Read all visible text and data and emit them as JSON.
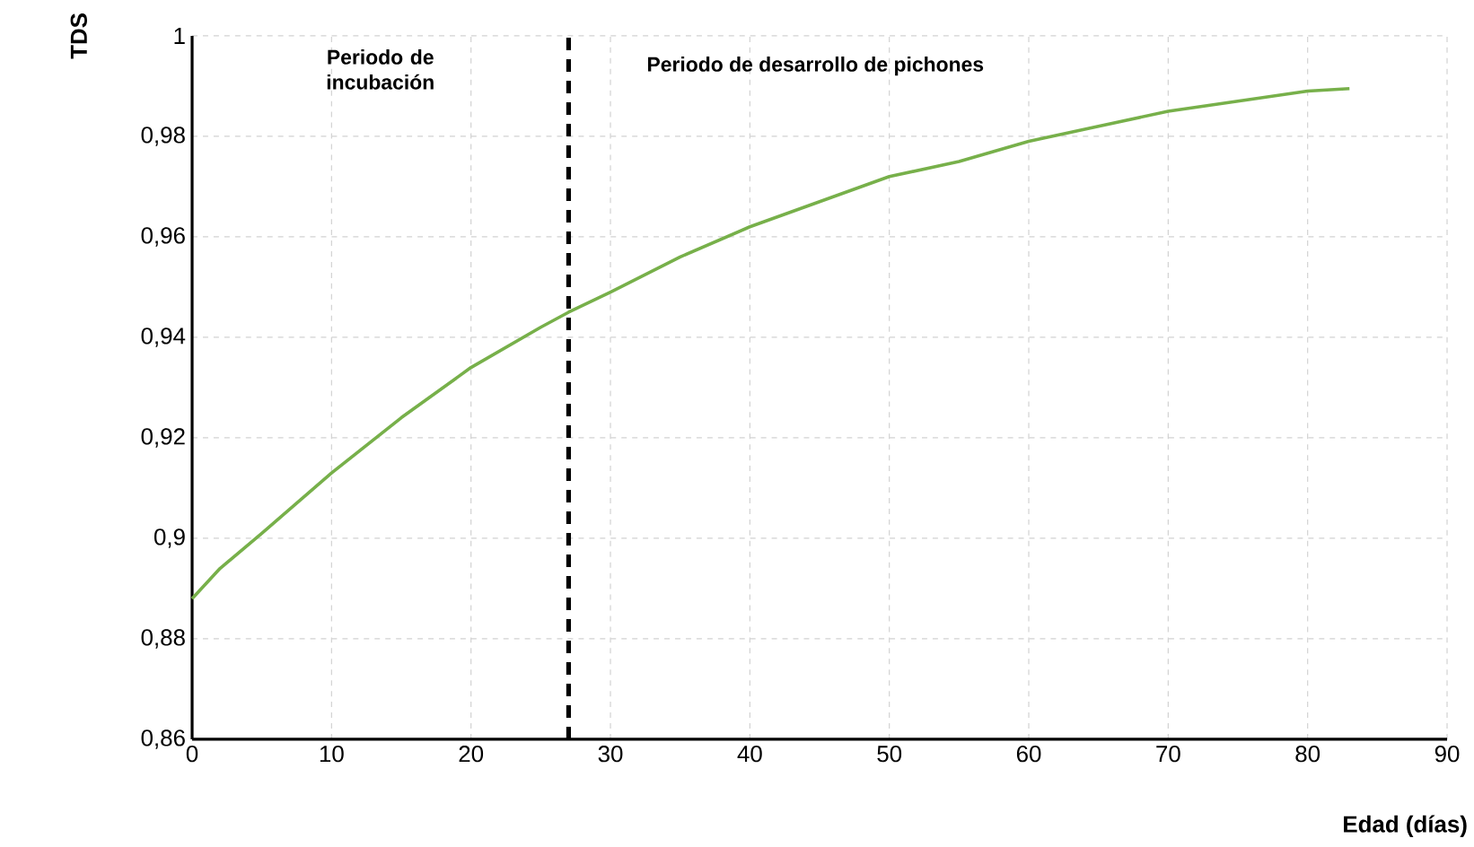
{
  "chart_data": {
    "type": "line",
    "xlabel": "Edad (días)",
    "ylabel": "TDS",
    "annotations": [
      "Periodo de incubación",
      "Periodo de desarrollo de pichones"
    ],
    "x": [
      0,
      2,
      5,
      10,
      15,
      20,
      25,
      27,
      30,
      35,
      40,
      45,
      50,
      55,
      60,
      65,
      70,
      75,
      80,
      83
    ],
    "series": [
      {
        "color": "#77b04a",
        "values": [
          0.888,
          0.894,
          0.901,
          0.913,
          0.924,
          0.934,
          0.942,
          0.945,
          0.949,
          0.956,
          0.962,
          0.967,
          0.972,
          0.975,
          0.979,
          0.982,
          0.985,
          0.987,
          0.989,
          0.9895
        ]
      }
    ],
    "xlim": [
      0,
      90
    ],
    "xticks": [
      0,
      10,
      20,
      30,
      40,
      50,
      60,
      70,
      80,
      90
    ],
    "ylim": [
      0.86,
      1
    ],
    "yticks": [
      {
        "value": 0.86,
        "label": "0,86"
      },
      {
        "value": 0.88,
        "label": "0,88"
      },
      {
        "value": 0.9,
        "label": "0,9"
      },
      {
        "value": 0.92,
        "label": "0,92"
      },
      {
        "value": 0.94,
        "label": "0,94"
      },
      {
        "value": 0.96,
        "label": "0,96"
      },
      {
        "value": 0.98,
        "label": "0,98"
      },
      {
        "value": 1,
        "label": "1"
      }
    ],
    "ref_lines": [
      {
        "axis": "x",
        "value": 27,
        "color": "#000000",
        "line_style": "dashed"
      }
    ],
    "grid": true,
    "marker": "none",
    "line_style": "solid"
  }
}
